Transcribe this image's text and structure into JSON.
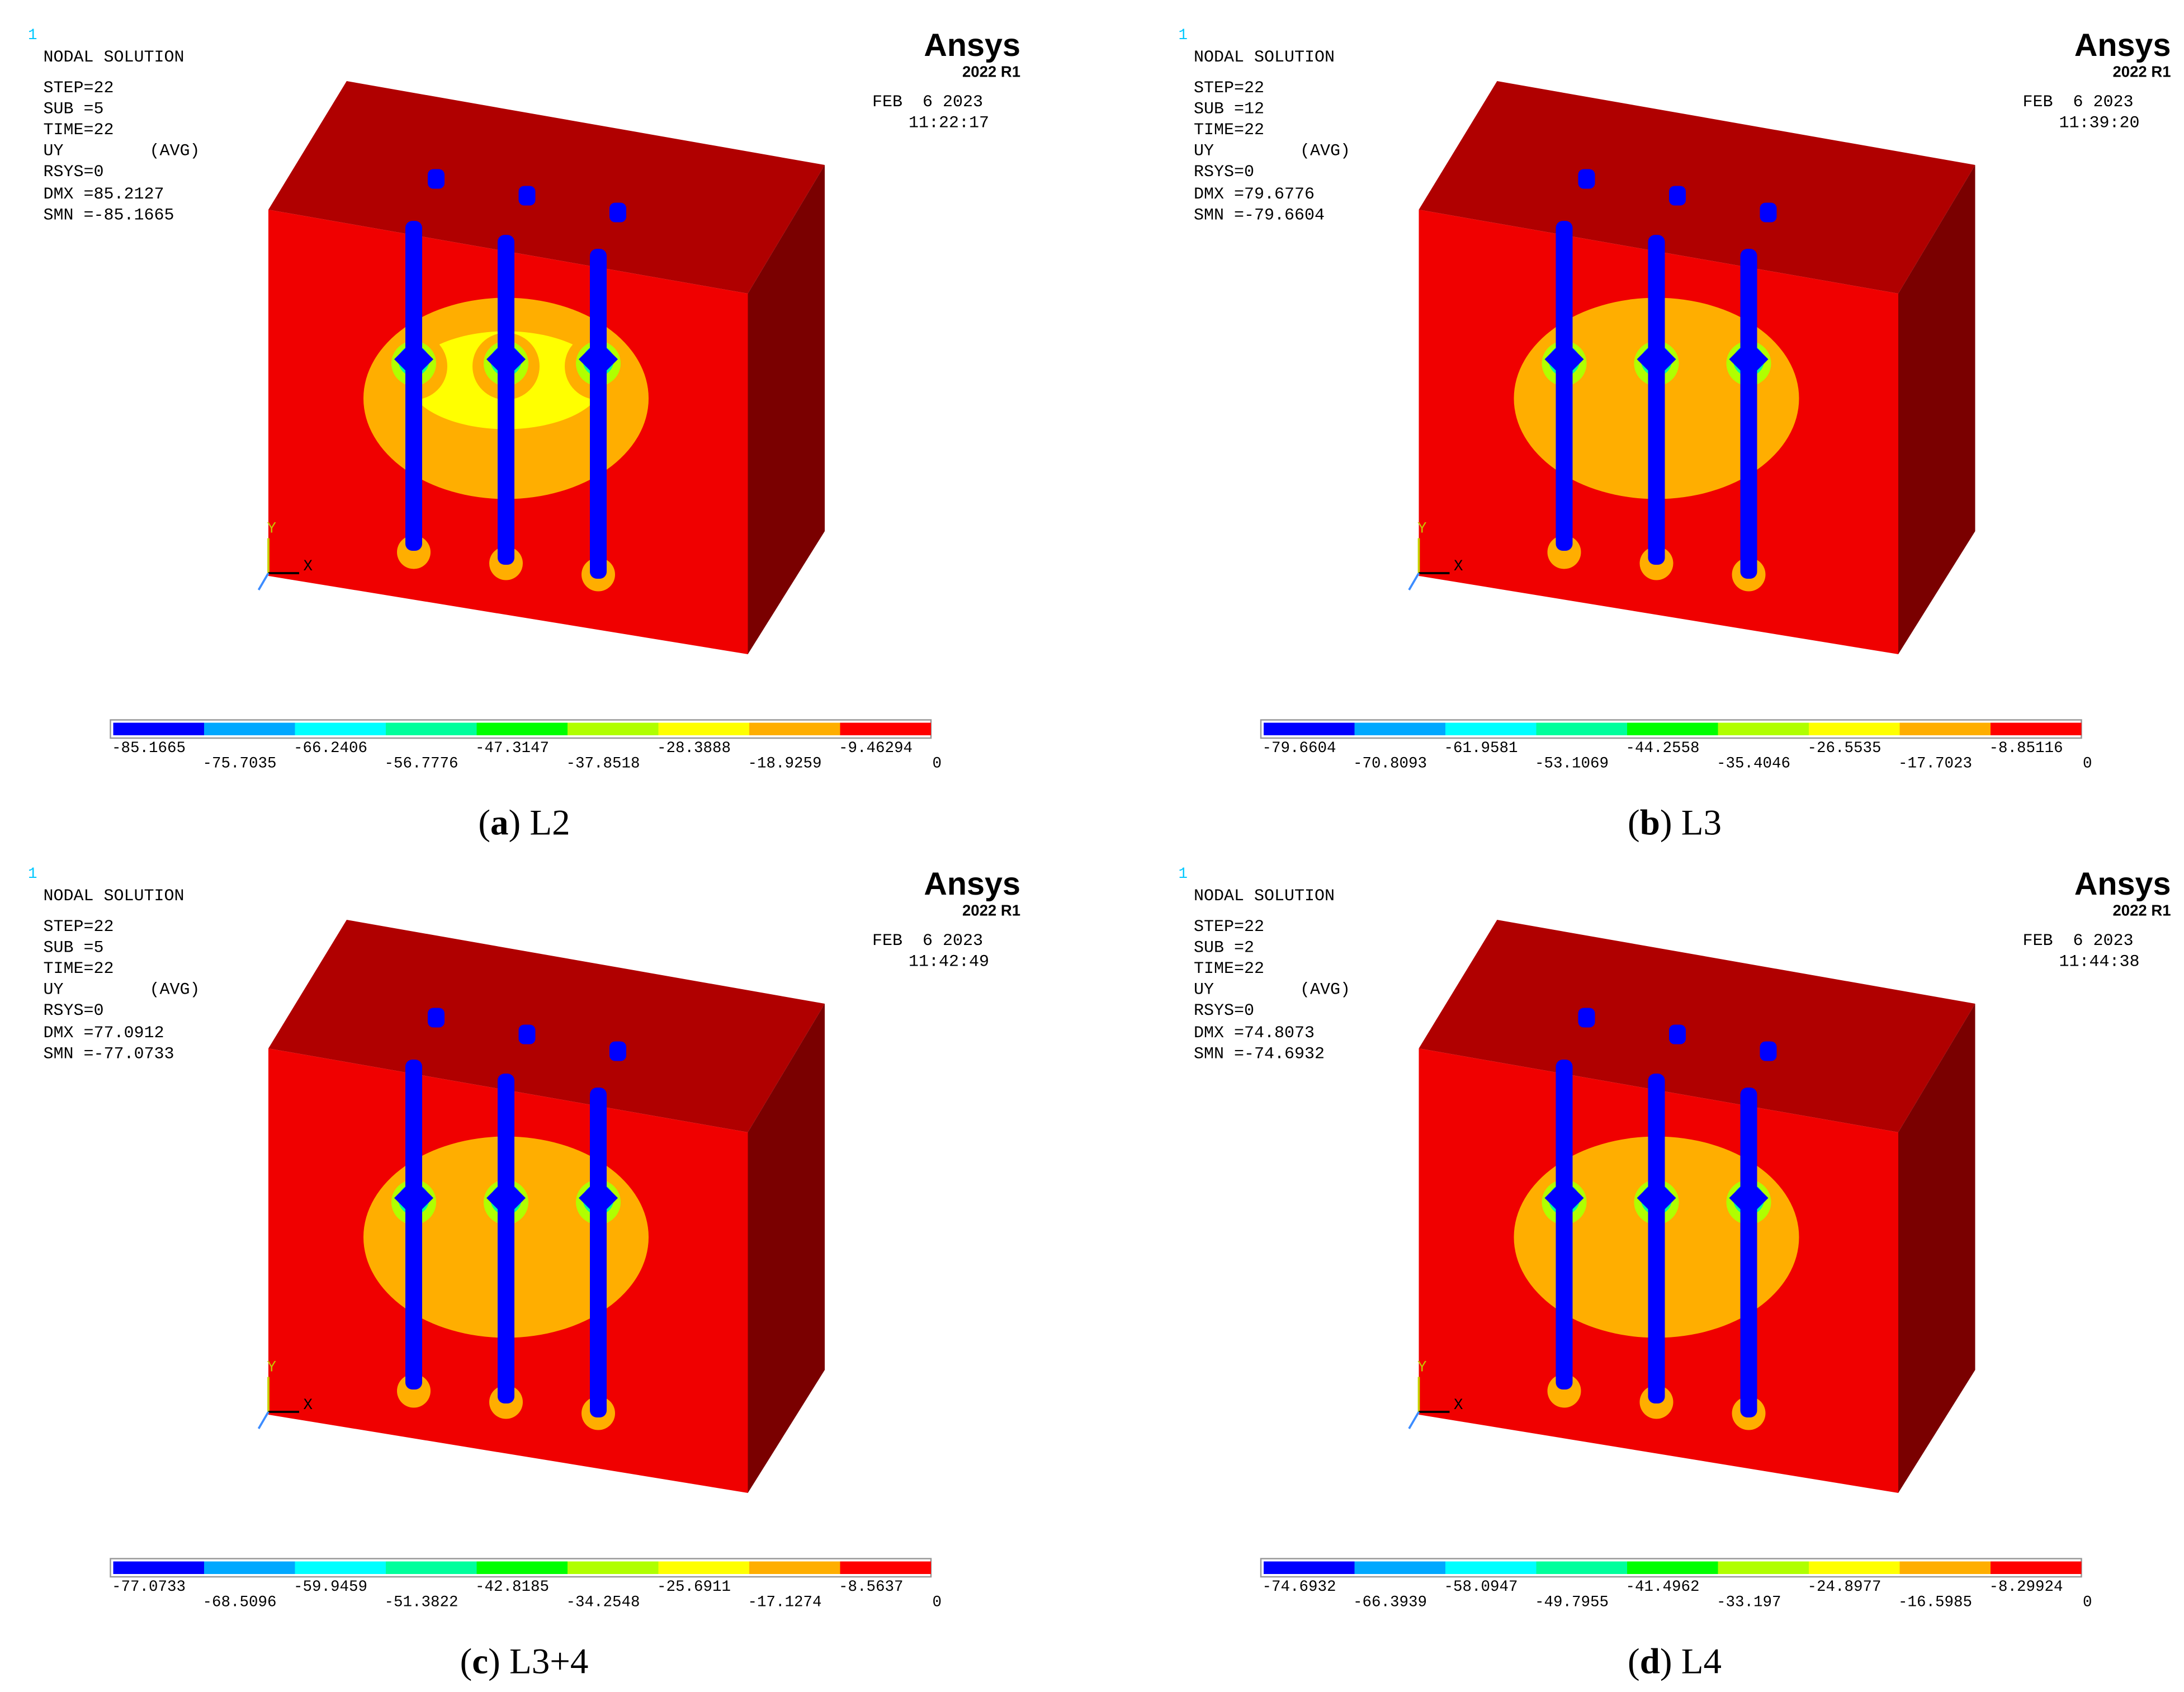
{
  "legend_colors": [
    "#0000ff",
    "#00a8ff",
    "#00ffff",
    "#00ff9c",
    "#00ff00",
    "#b0ff00",
    "#ffff00",
    "#ffae00",
    "#ff0000"
  ],
  "panels": [
    {
      "index_mark": "1",
      "title": "NODAL SOLUTION",
      "info": [
        "STEP=22",
        "SUB =5",
        "TIME=22",
        "UY",
        "RSYS=0",
        "DMX =85.2127",
        "SMN =-85.1665"
      ],
      "avg": "(AVG)",
      "brand": "Ansys",
      "version": "2022 R1",
      "date": "FEB  6 2023",
      "time": "11:22:17",
      "axis_y": "Y",
      "axis_x": "X",
      "legend": [
        "-85.1665",
        "-75.7035",
        "-66.2406",
        "-56.7776",
        "-47.3147",
        "-37.8518",
        "-28.3888",
        "-18.9259",
        "-9.46294",
        "0"
      ],
      "caption": [
        "(",
        "a",
        ") L2"
      ]
    },
    {
      "index_mark": "1",
      "title": "NODAL SOLUTION",
      "info": [
        "STEP=22",
        "SUB =12",
        "TIME=22",
        "UY",
        "RSYS=0",
        "DMX =79.6776",
        "SMN =-79.6604"
      ],
      "avg": "(AVG)",
      "brand": "Ansys",
      "version": "2022 R1",
      "date": "FEB  6 2023",
      "time": "11:39:20",
      "axis_y": "Y",
      "axis_x": "X",
      "legend": [
        "-79.6604",
        "-70.8093",
        "-61.9581",
        "-53.1069",
        "-44.2558",
        "-35.4046",
        "-26.5535",
        "-17.7023",
        "-8.85116",
        "0"
      ],
      "caption": [
        "(",
        "b",
        ") L3"
      ]
    },
    {
      "index_mark": "1",
      "title": "NODAL SOLUTION",
      "info": [
        "STEP=22",
        "SUB =5",
        "TIME=22",
        "UY",
        "RSYS=0",
        "DMX =77.0912",
        "SMN =-77.0733"
      ],
      "avg": "(AVG)",
      "brand": "Ansys",
      "version": "2022 R1",
      "date": "FEB  6 2023",
      "time": "11:42:49",
      "axis_y": "Y",
      "axis_x": "X",
      "legend": [
        "-77.0733",
        "-68.5096",
        "-59.9459",
        "-51.3822",
        "-42.8185",
        "-34.2548",
        "-25.6911",
        "-17.1274",
        "-8.5637",
        "0"
      ],
      "caption": [
        "(",
        "c",
        ") L3+4"
      ]
    },
    {
      "index_mark": "1",
      "title": "NODAL SOLUTION",
      "info": [
        "STEP=22",
        "SUB =2",
        "TIME=22",
        "UY",
        "RSYS=0",
        "DMX =74.8073",
        "SMN =-74.6932"
      ],
      "avg": "(AVG)",
      "brand": "Ansys",
      "version": "2022 R1",
      "date": "FEB  6 2023",
      "time": "11:44:38",
      "axis_y": "Y",
      "axis_x": "X",
      "legend": [
        "-74.6932",
        "-66.3939",
        "-58.0947",
        "-49.7955",
        "-41.4962",
        "-33.197",
        "-24.8977",
        "-16.5985",
        "-8.29924",
        "0"
      ],
      "caption": [
        "(",
        "d",
        ") L4"
      ]
    }
  ]
}
